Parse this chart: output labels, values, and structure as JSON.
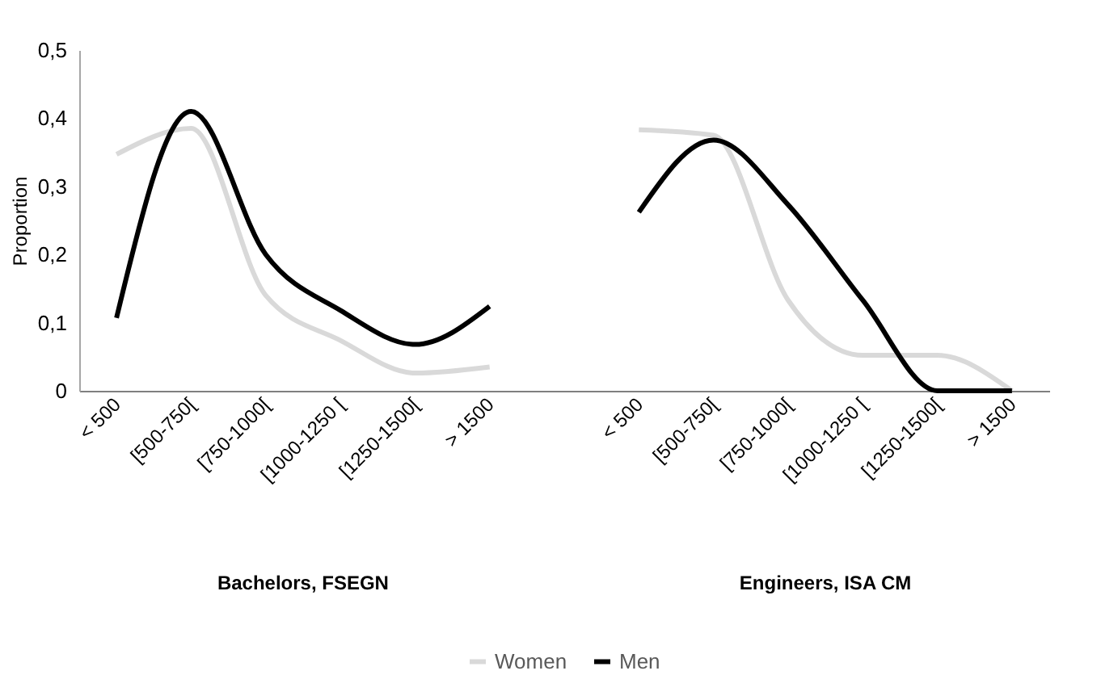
{
  "chart_data": {
    "type": "line",
    "ylabel": "Proportion",
    "categories": [
      "< 500",
      "[500-750[",
      "[750-1000[",
      "[1000-1250 [",
      "[1250-1500[",
      "> 1500",
      null,
      "< 500",
      "[500-750[",
      "[750-1000[",
      "[1000-1250 [",
      "[1250-1500[",
      "> 1500"
    ],
    "series": [
      {
        "name": "Women",
        "color": "#d9d9d9",
        "values": [
          0.347,
          0.385,
          0.14,
          0.074,
          0.026,
          0.035,
          null,
          0.383,
          0.375,
          0.133,
          0.052,
          0.052,
          0
        ]
      },
      {
        "name": "Men",
        "color": "#000000",
        "values": [
          0.107,
          0.41,
          0.2,
          0.118,
          0.068,
          0.124,
          null,
          0.262,
          0.368,
          0.273,
          0.133,
          0,
          0
        ]
      }
    ],
    "ylim": [
      0,
      0.5
    ],
    "yticks": [
      0,
      {
        "value": 0.1,
        "label": "0,1"
      },
      {
        "value": 0.2,
        "label": "0,2"
      },
      {
        "value": 0.3,
        "label": "0,3"
      },
      {
        "value": 0.4,
        "label": "0,4"
      },
      {
        "value": 0.5,
        "label": "0,5"
      }
    ],
    "annotations": [
      "Bachelors, FSEGN",
      "Engineers, ISA CM"
    ],
    "grid": false,
    "legend": "bottom",
    "marker": "none",
    "line_style": "solid"
  }
}
